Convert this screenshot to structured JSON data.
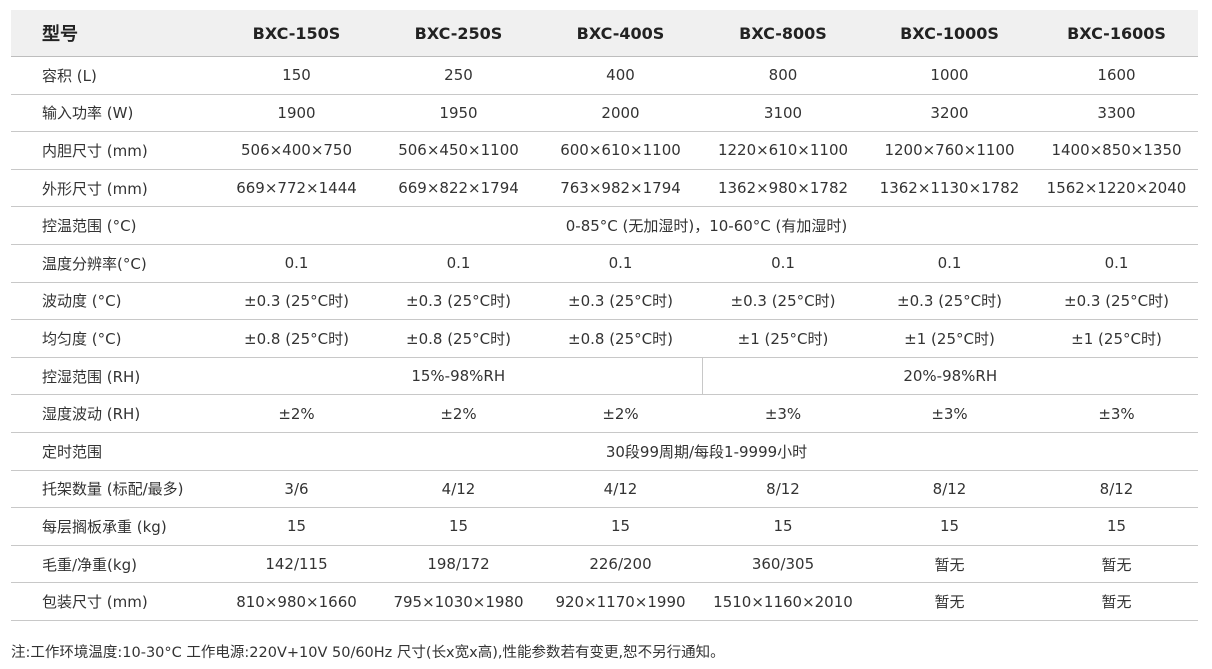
{
  "table": {
    "header": [
      "型号",
      "BXC-150S",
      "BXC-250S",
      "BXC-400S",
      "BXC-800S",
      "BXC-1000S",
      "BXC-1600S"
    ],
    "rows": [
      {
        "label": "容积 (L)",
        "cells": [
          "150",
          "250",
          "400",
          "800",
          "1000",
          "1600"
        ]
      },
      {
        "label": "输入功率 (W)",
        "cells": [
          "1900",
          "1950",
          "2000",
          "3100",
          "3200",
          "3300"
        ]
      },
      {
        "label": "内胆尺寸 (mm)",
        "cells": [
          "506×400×750",
          "506×450×1100",
          "600×610×1100",
          "1220×610×1100",
          "1200×760×1100",
          "1400×850×1350"
        ]
      },
      {
        "label": "外形尺寸 (mm)",
        "cells": [
          "669×772×1444",
          "669×822×1794",
          "763×982×1794",
          "1362×980×1782",
          "1362×1130×1782",
          "1562×1220×2040"
        ]
      },
      {
        "label": "控温范围 (°C)",
        "span_all": "0-85°C (无加湿时)，10-60°C (有加湿时)"
      },
      {
        "label": "温度分辨率(°C)",
        "cells": [
          "0.1",
          "0.1",
          "0.1",
          "0.1",
          "0.1",
          "0.1"
        ]
      },
      {
        "label": "波动度 (°C)",
        "cells": [
          "±0.3 (25°C时)",
          "±0.3 (25°C时)",
          "±0.3 (25°C时)",
          "±0.3 (25°C时)",
          "±0.3 (25°C时)",
          "±0.3 (25°C时)"
        ]
      },
      {
        "label": "均匀度 (°C)",
        "cells": [
          "±0.8 (25°C时)",
          "±0.8 (25°C时)",
          "±0.8 (25°C时)",
          "±1 (25°C时)",
          "±1 (25°C时)",
          "±1 (25°C时)"
        ]
      },
      {
        "label": "控湿范围 (RH)",
        "split": [
          "15%-98%RH",
          "20%-98%RH"
        ]
      },
      {
        "label": "湿度波动 (RH)",
        "cells": [
          "±2%",
          "±2%",
          "±2%",
          "±3%",
          "±3%",
          "±3%"
        ]
      },
      {
        "label": "定时范围",
        "span_all": "30段99周期/每段1-9999小时"
      },
      {
        "label": "托架数量 (标配/最多)",
        "cells": [
          "3/6",
          "4/12",
          "4/12",
          "8/12",
          "8/12",
          "8/12"
        ]
      },
      {
        "label": "每层搁板承重 (kg)",
        "cells": [
          "15",
          "15",
          "15",
          "15",
          "15",
          "15"
        ]
      },
      {
        "label": "毛重/净重(kg)",
        "cells": [
          "142/115",
          "198/172",
          "226/200",
          "360/305",
          "暂无",
          "暂无"
        ]
      },
      {
        "label": "包装尺寸 (mm)",
        "cells": [
          "810×980×1660",
          "795×1030×1980",
          "920×1170×1990",
          "1510×1160×2010",
          "暂无",
          "暂无"
        ]
      }
    ]
  },
  "footnote": "注:工作环境温度:10-30°C  工作电源:220V+10V  50/60Hz  尺寸(长x宽x高),性能参数若有变更,恕不另行通知。"
}
